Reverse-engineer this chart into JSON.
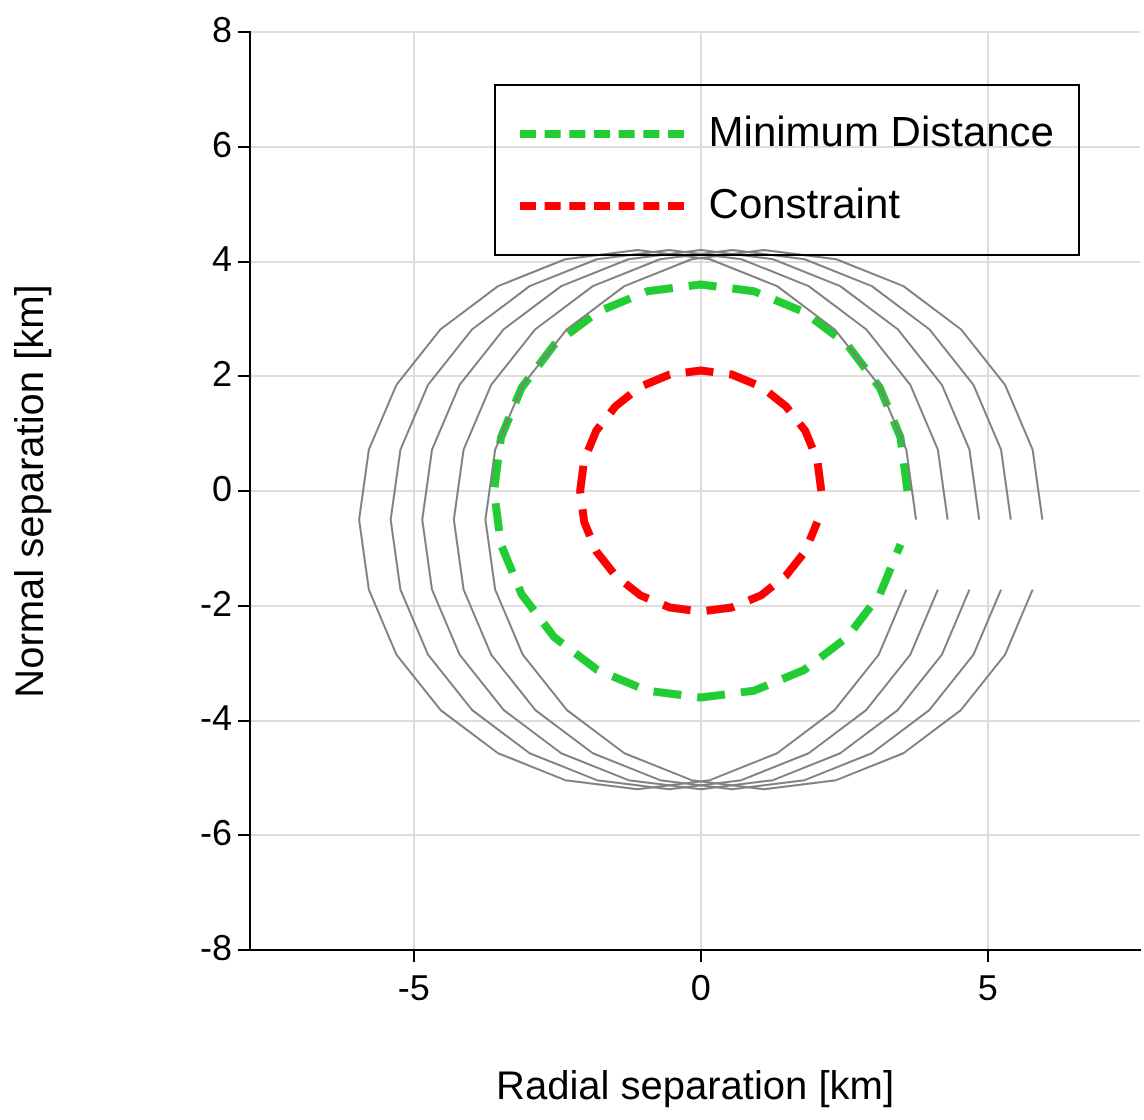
{
  "chart_data": {
    "type": "line",
    "xlabel": "Radial separation [km]",
    "ylabel": "Normal separation [km]",
    "xlim": [
      -7.85,
      7.65
    ],
    "ylim": [
      -8,
      8
    ],
    "xticks": [
      -5,
      0,
      5
    ],
    "yticks": [
      -8,
      -6,
      -4,
      -2,
      0,
      2,
      4,
      6,
      8
    ],
    "grid": true,
    "legend": "top right",
    "marker": "none",
    "series": [
      {
        "color": "#808080",
        "line_style": "solid",
        "x": [
          3.75,
          3.58,
          3.1,
          2.33,
          1.33,
          0.16,
          -1.1,
          -2.36,
          -3.53,
          -4.53,
          -5.3,
          -5.78,
          -5.95,
          -5.78,
          -5.3,
          -4.53,
          -3.53,
          -2.36,
          -1.1,
          0.16,
          1.33,
          2.33,
          3.1,
          3.58
        ],
        "values": [
          -0.5,
          0.72,
          1.85,
          2.82,
          3.57,
          4.04,
          4.2,
          4.04,
          3.57,
          2.82,
          1.85,
          0.72,
          -0.5,
          -1.72,
          -2.85,
          -3.82,
          -4.57,
          -5.04,
          -5.2,
          -5.04,
          -4.57,
          -3.82,
          -2.85,
          -1.72
        ]
      },
      {
        "color": "#808080",
        "line_style": "solid",
        "x": [
          4.3,
          4.13,
          3.65,
          2.88,
          1.88,
          0.71,
          -0.55,
          -1.81,
          -2.98,
          -3.98,
          -4.75,
          -5.23,
          -5.4,
          -5.23,
          -4.75,
          -3.98,
          -2.98,
          -1.81,
          -0.55,
          0.71,
          1.88,
          2.88,
          3.65,
          4.13
        ],
        "values": [
          -0.5,
          0.72,
          1.85,
          2.82,
          3.57,
          4.04,
          4.2,
          4.04,
          3.57,
          2.82,
          1.85,
          0.72,
          -0.5,
          -1.72,
          -2.85,
          -3.82,
          -4.57,
          -5.04,
          -5.2,
          -5.04,
          -4.57,
          -3.82,
          -2.85,
          -1.72
        ]
      },
      {
        "color": "#808080",
        "line_style": "solid",
        "x": [
          4.85,
          4.68,
          4.2,
          3.43,
          2.43,
          1.26,
          0,
          -1.26,
          -2.43,
          -3.43,
          -4.2,
          -4.68,
          -4.85,
          -4.68,
          -4.2,
          -3.43,
          -2.43,
          -1.26,
          0,
          1.26,
          2.43,
          3.43,
          4.2,
          4.68
        ],
        "values": [
          -0.5,
          0.72,
          1.85,
          2.82,
          3.57,
          4.04,
          4.2,
          4.04,
          3.57,
          2.82,
          1.85,
          0.72,
          -0.5,
          -1.72,
          -2.85,
          -3.82,
          -4.57,
          -5.04,
          -5.2,
          -5.04,
          -4.57,
          -3.82,
          -2.85,
          -1.72
        ]
      },
      {
        "color": "#808080",
        "line_style": "solid",
        "x": [
          5.4,
          5.23,
          4.75,
          3.98,
          2.98,
          1.81,
          0.55,
          -0.71,
          -1.88,
          -2.88,
          -3.65,
          -4.13,
          -4.3,
          -4.13,
          -3.65,
          -2.88,
          -1.88,
          -0.71,
          0.55,
          1.81,
          2.98,
          3.98,
          4.75,
          5.23
        ],
        "values": [
          -0.5,
          0.72,
          1.85,
          2.82,
          3.57,
          4.04,
          4.2,
          4.04,
          3.57,
          2.82,
          1.85,
          0.72,
          -0.5,
          -1.72,
          -2.85,
          -3.82,
          -4.57,
          -5.04,
          -5.2,
          -5.04,
          -4.57,
          -3.82,
          -2.85,
          -1.72
        ]
      },
      {
        "color": "#808080",
        "line_style": "solid",
        "x": [
          5.95,
          5.78,
          5.3,
          4.53,
          3.53,
          2.36,
          1.1,
          -0.16,
          -1.33,
          -2.33,
          -3.1,
          -3.58,
          -3.75,
          -3.58,
          -3.1,
          -2.33,
          -1.33,
          -0.16,
          1.1,
          2.36,
          3.53,
          4.53,
          5.3,
          5.78
        ],
        "values": [
          -0.5,
          0.72,
          1.85,
          2.82,
          3.57,
          4.04,
          4.2,
          4.04,
          3.57,
          2.82,
          1.85,
          0.72,
          -0.5,
          -1.72,
          -2.85,
          -3.82,
          -4.57,
          -5.04,
          -5.2,
          -5.04,
          -4.57,
          -3.82,
          -2.85,
          -1.72
        ]
      },
      {
        "name": "Minimum Distance",
        "color": "#22cc33",
        "line_style": "dashed",
        "x": [
          3.6,
          3.48,
          3.12,
          2.55,
          1.8,
          0.93,
          0,
          -0.93,
          -1.8,
          -2.55,
          -3.12,
          -3.48,
          -3.6,
          -3.48,
          -3.12,
          -2.55,
          -1.8,
          -0.93,
          0,
          0.93,
          1.8,
          2.55,
          3.12,
          3.48
        ],
        "values": [
          0,
          0.93,
          1.8,
          2.55,
          3.12,
          3.48,
          3.6,
          3.48,
          3.12,
          2.55,
          1.8,
          0.93,
          0,
          -0.93,
          -1.8,
          -2.55,
          -3.12,
          -3.48,
          -3.6,
          -3.48,
          -3.12,
          -2.55,
          -1.8,
          -0.93
        ]
      },
      {
        "name": "Constraint",
        "color": "#ff0000",
        "line_style": "dashed",
        "x": [
          2.1,
          2.03,
          1.82,
          1.48,
          1.05,
          0.54,
          0,
          -0.54,
          -1.05,
          -1.48,
          -1.82,
          -2.03,
          -2.1,
          -2.03,
          -1.82,
          -1.48,
          -1.05,
          -0.54,
          0,
          0.54,
          1.05,
          1.48,
          1.82,
          2.03
        ],
        "values": [
          0,
          0.54,
          1.05,
          1.48,
          1.82,
          2.03,
          2.1,
          2.03,
          1.82,
          1.48,
          1.05,
          0.54,
          0,
          -0.54,
          -1.05,
          -1.48,
          -1.82,
          -2.03,
          -2.1,
          -2.03,
          -1.82,
          -1.48,
          -1.05,
          -0.54
        ]
      }
    ]
  }
}
